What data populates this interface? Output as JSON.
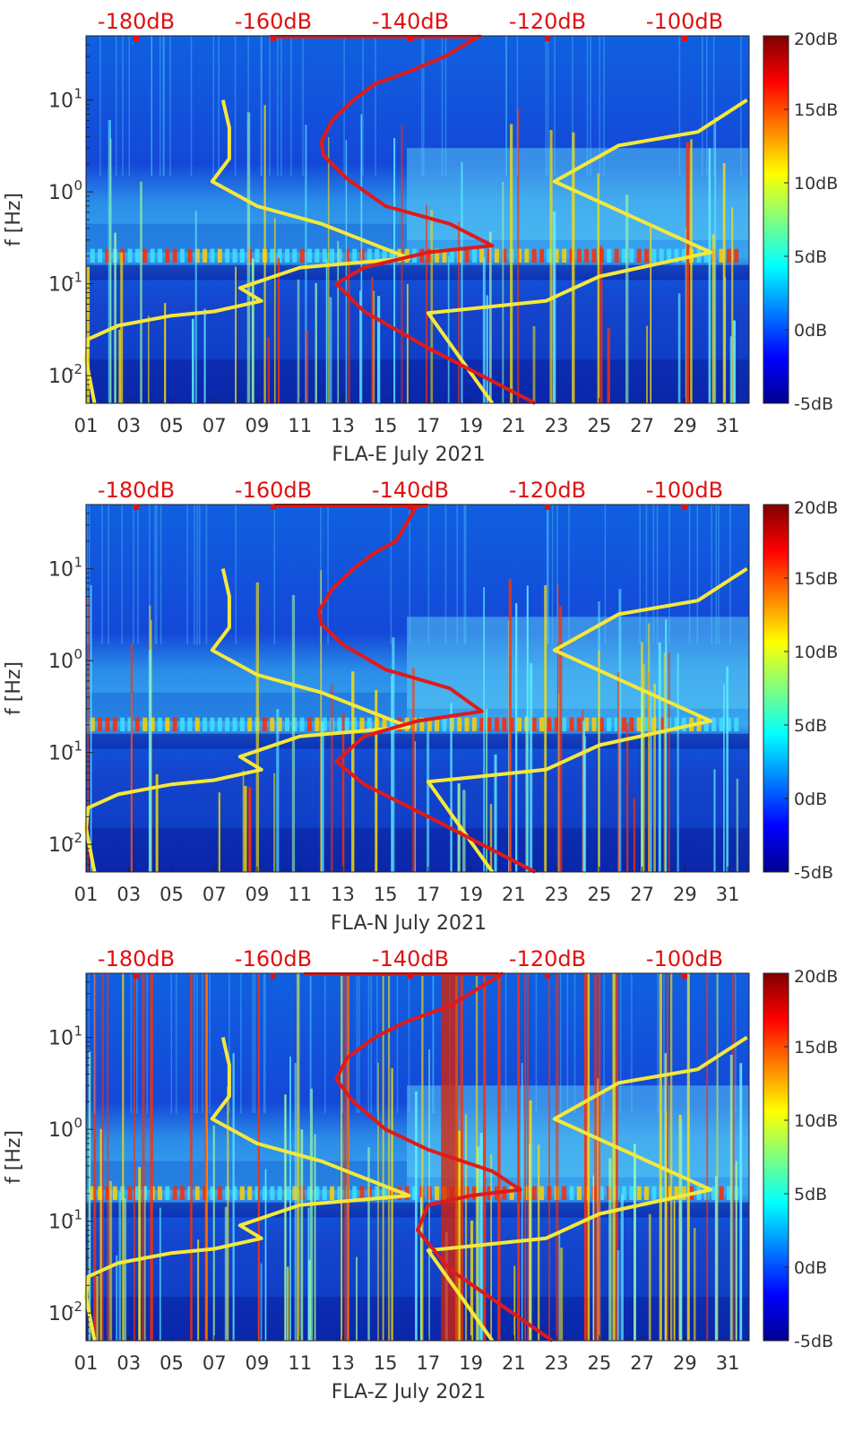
{
  "chart_data": [
    {
      "type": "heatmap",
      "xlabel": "FLA-E July 2021",
      "ylabel": "f [Hz]",
      "x_ticks": [
        "01",
        "03",
        "05",
        "07",
        "09",
        "11",
        "13",
        "15",
        "17",
        "19",
        "21",
        "23",
        "25",
        "27",
        "29",
        "31"
      ],
      "x_range_days": [
        1,
        32
      ],
      "y_scale": "log",
      "y_range_hz": [
        0.005,
        50
      ],
      "y_ticks": [
        {
          "base": "10",
          "exp": "-2"
        },
        {
          "base": "10",
          "exp": "-1"
        },
        {
          "base": "10",
          "exp": "0"
        },
        {
          "base": "10",
          "exp": "1"
        }
      ],
      "top_axis_ticks": [
        "-180dB",
        "-160dB",
        "-140dB",
        "-120dB",
        "-100dB"
      ],
      "colorbar": {
        "ticks": [
          "20dB",
          "15dB",
          "10dB",
          "5dB",
          "0dB",
          "-5dB"
        ],
        "range_db": [
          -5,
          20
        ],
        "colormap": "jet"
      },
      "overlay_lines": [
        {
          "color": "#f5e83a",
          "points": [
            [
              1.4,
              0.005
            ],
            [
              1.0,
              0.015
            ],
            [
              1.1,
              0.025
            ],
            [
              2.5,
              0.035
            ],
            [
              5,
              0.045
            ],
            [
              7,
              0.05
            ],
            [
              9.2,
              0.065
            ],
            [
              8.2,
              0.09
            ],
            [
              11,
              0.15
            ],
            [
              16.1,
              0.19
            ],
            [
              12,
              0.45
            ],
            [
              9,
              0.7
            ],
            [
              6.9,
              1.3
            ],
            [
              7.7,
              2.3
            ],
            [
              7.7,
              5
            ],
            [
              7.4,
              10
            ]
          ]
        },
        {
          "color": "#f5e83a",
          "points": [
            [
              20,
              0.005
            ],
            [
              17,
              0.048
            ],
            [
              22.5,
              0.065
            ],
            [
              25,
              0.12
            ],
            [
              30.2,
              0.22
            ],
            [
              22.9,
              1.3
            ],
            [
              25.9,
              3.2
            ],
            [
              29.6,
              4.5
            ],
            [
              31.9,
              10
            ]
          ]
        },
        {
          "color": "#e01a1a",
          "points": [
            [
              22,
              0.005
            ],
            [
              17,
              0.02
            ],
            [
              14,
              0.05
            ],
            [
              12.7,
              0.1
            ],
            [
              14,
              0.15
            ],
            [
              17,
              0.22
            ],
            [
              20,
              0.26
            ],
            [
              18,
              0.45
            ],
            [
              15,
              0.7
            ],
            [
              13.2,
              1.4
            ],
            [
              12.1,
              2.5
            ],
            [
              12.0,
              3.5
            ],
            [
              12.5,
              6
            ],
            [
              13.5,
              10
            ],
            [
              14.5,
              15
            ],
            [
              16,
              20
            ],
            [
              17.8,
              30
            ],
            [
              19.4,
              50
            ]
          ]
        }
      ],
      "top_red_line": {
        "color": "#e01a1a",
        "x_from": 9.6,
        "x_to": 19.5
      }
    },
    {
      "type": "heatmap",
      "xlabel": "FLA-N July 2021",
      "ylabel": "f [Hz]",
      "x_ticks": [
        "01",
        "03",
        "05",
        "07",
        "09",
        "11",
        "13",
        "15",
        "17",
        "19",
        "21",
        "23",
        "25",
        "27",
        "29",
        "31"
      ],
      "x_range_days": [
        1,
        32
      ],
      "y_scale": "log",
      "y_range_hz": [
        0.005,
        50
      ],
      "y_ticks": [
        {
          "base": "10",
          "exp": "-2"
        },
        {
          "base": "10",
          "exp": "-1"
        },
        {
          "base": "10",
          "exp": "0"
        },
        {
          "base": "10",
          "exp": "1"
        }
      ],
      "top_axis_ticks": [
        "-180dB",
        "-160dB",
        "-140dB",
        "-120dB",
        "-100dB"
      ],
      "colorbar": {
        "ticks": [
          "20dB",
          "15dB",
          "10dB",
          "5dB",
          "0dB",
          "-5dB"
        ],
        "range_db": [
          -5,
          20
        ],
        "colormap": "jet"
      },
      "overlay_lines": [
        {
          "color": "#f5e83a",
          "points": [
            [
              1.4,
              0.005
            ],
            [
              1.0,
              0.015
            ],
            [
              1.1,
              0.025
            ],
            [
              2.5,
              0.035
            ],
            [
              5,
              0.045
            ],
            [
              7,
              0.05
            ],
            [
              9.2,
              0.065
            ],
            [
              8.2,
              0.09
            ],
            [
              11,
              0.15
            ],
            [
              16.1,
              0.19
            ],
            [
              12,
              0.45
            ],
            [
              9,
              0.7
            ],
            [
              6.9,
              1.3
            ],
            [
              7.7,
              2.3
            ],
            [
              7.7,
              5
            ],
            [
              7.4,
              10
            ]
          ]
        },
        {
          "color": "#f5e83a",
          "points": [
            [
              20,
              0.005
            ],
            [
              17,
              0.048
            ],
            [
              22.5,
              0.065
            ],
            [
              25,
              0.12
            ],
            [
              30.2,
              0.22
            ],
            [
              22.9,
              1.3
            ],
            [
              25.9,
              3.2
            ],
            [
              29.6,
              4.5
            ],
            [
              31.9,
              10
            ]
          ]
        },
        {
          "color": "#e01a1a",
          "points": [
            [
              22,
              0.005
            ],
            [
              17,
              0.02
            ],
            [
              14,
              0.045
            ],
            [
              12.7,
              0.08
            ],
            [
              14,
              0.15
            ],
            [
              16.5,
              0.22
            ],
            [
              19.5,
              0.28
            ],
            [
              18,
              0.5
            ],
            [
              15,
              0.8
            ],
            [
              13,
              1.5
            ],
            [
              12.0,
              2.5
            ],
            [
              11.9,
              3.5
            ],
            [
              12.5,
              6
            ],
            [
              13.5,
              10
            ],
            [
              14.5,
              15
            ],
            [
              15.5,
              20
            ],
            [
              16.5,
              50
            ]
          ]
        }
      ],
      "top_red_line": {
        "color": "#e01a1a",
        "x_from": 9.8,
        "x_to": 17
      }
    },
    {
      "type": "heatmap",
      "xlabel": "FLA-Z July 2021",
      "ylabel": "f [Hz]",
      "x_ticks": [
        "01",
        "03",
        "05",
        "07",
        "09",
        "11",
        "13",
        "15",
        "17",
        "19",
        "21",
        "23",
        "25",
        "27",
        "29",
        "31"
      ],
      "x_range_days": [
        1,
        32
      ],
      "y_scale": "log",
      "y_range_hz": [
        0.005,
        50
      ],
      "y_ticks": [
        {
          "base": "10",
          "exp": "-2"
        },
        {
          "base": "10",
          "exp": "-1"
        },
        {
          "base": "10",
          "exp": "0"
        },
        {
          "base": "10",
          "exp": "1"
        }
      ],
      "top_axis_ticks": [
        "-180dB",
        "-160dB",
        "-140dB",
        "-120dB",
        "-100dB"
      ],
      "colorbar": {
        "ticks": [
          "20dB",
          "15dB",
          "10dB",
          "5dB",
          "0dB",
          "-5dB"
        ],
        "range_db": [
          -5,
          20
        ],
        "colormap": "jet"
      },
      "overlay_lines": [
        {
          "color": "#f5e83a",
          "points": [
            [
              1.4,
              0.005
            ],
            [
              1.0,
              0.015
            ],
            [
              1.1,
              0.025
            ],
            [
              2.5,
              0.035
            ],
            [
              5,
              0.045
            ],
            [
              7,
              0.05
            ],
            [
              9.2,
              0.065
            ],
            [
              8.2,
              0.09
            ],
            [
              11,
              0.15
            ],
            [
              16.1,
              0.19
            ],
            [
              12,
              0.45
            ],
            [
              9,
              0.7
            ],
            [
              6.9,
              1.3
            ],
            [
              7.7,
              2.3
            ],
            [
              7.7,
              5
            ],
            [
              7.4,
              10
            ]
          ]
        },
        {
          "color": "#f5e83a",
          "points": [
            [
              20,
              0.005
            ],
            [
              17,
              0.048
            ],
            [
              22.5,
              0.065
            ],
            [
              25,
              0.12
            ],
            [
              30.2,
              0.22
            ],
            [
              22.9,
              1.3
            ],
            [
              25.9,
              3.2
            ],
            [
              29.6,
              4.5
            ],
            [
              31.9,
              10
            ]
          ]
        },
        {
          "color": "#e01a1a",
          "points": [
            [
              22.8,
              0.005
            ],
            [
              18,
              0.03
            ],
            [
              16.5,
              0.08
            ],
            [
              17,
              0.15
            ],
            [
              19,
              0.19
            ],
            [
              21.3,
              0.22
            ],
            [
              20,
              0.35
            ],
            [
              17,
              0.6
            ],
            [
              15,
              1.0
            ],
            [
              13.5,
              2.0
            ],
            [
              12.7,
              3.5
            ],
            [
              13.2,
              6
            ],
            [
              14.5,
              10
            ],
            [
              16,
              15
            ],
            [
              18,
              22
            ],
            [
              20.5,
              50
            ]
          ]
        }
      ],
      "top_red_line": {
        "color": "#e01a1a",
        "x_from": 11.2,
        "x_to": 20.3
      }
    }
  ]
}
